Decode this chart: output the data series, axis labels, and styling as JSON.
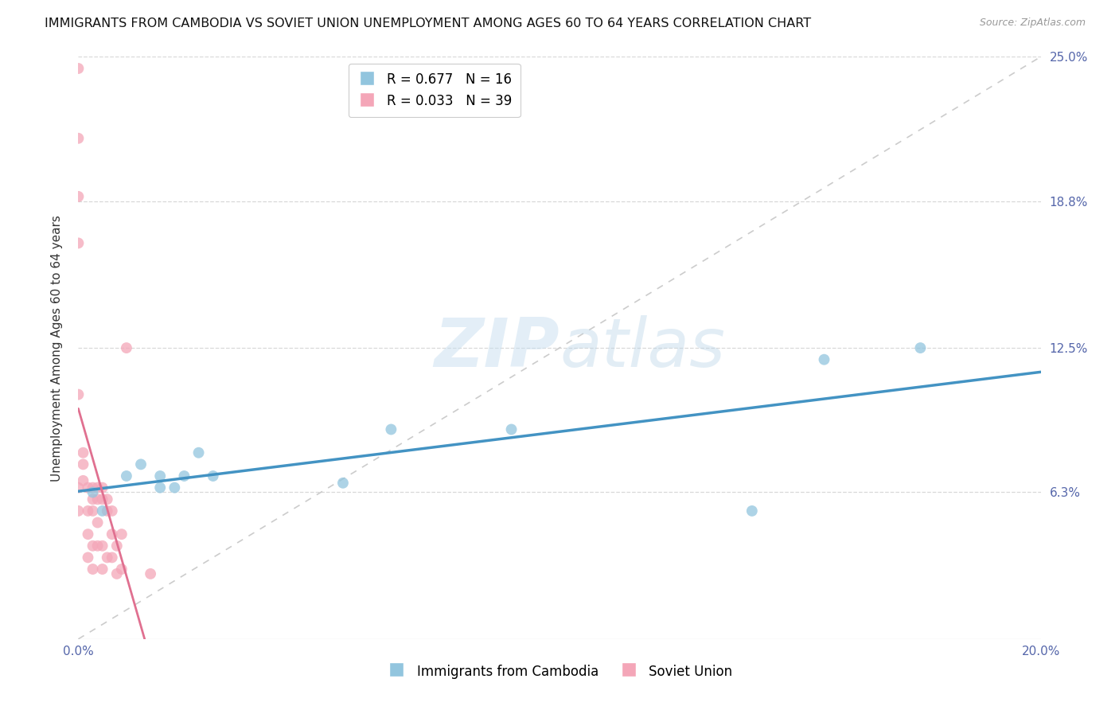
{
  "title": "IMMIGRANTS FROM CAMBODIA VS SOVIET UNION UNEMPLOYMENT AMONG AGES 60 TO 64 YEARS CORRELATION CHART",
  "source": "Source: ZipAtlas.com",
  "ylabel": "Unemployment Among Ages 60 to 64 years",
  "xlim": [
    0,
    0.2
  ],
  "ylim": [
    0,
    0.25
  ],
  "xticks": [
    0.0,
    0.05,
    0.1,
    0.15,
    0.2
  ],
  "yticks_right": [
    0.063,
    0.125,
    0.188,
    0.25
  ],
  "ytick_labels_right": [
    "6.3%",
    "12.5%",
    "18.8%",
    "25.0%"
  ],
  "cambodia_R": 0.677,
  "cambodia_N": 16,
  "soviet_R": 0.033,
  "soviet_N": 39,
  "cambodia_color": "#92c5de",
  "cambodia_line_color": "#4393c3",
  "soviet_color": "#f4a6b8",
  "soviet_line_color": "#e07090",
  "ref_line_color": "#cccccc",
  "background_color": "#ffffff",
  "cambodia_x": [
    0.003,
    0.005,
    0.01,
    0.013,
    0.017,
    0.017,
    0.02,
    0.022,
    0.025,
    0.028,
    0.055,
    0.065,
    0.09,
    0.14,
    0.155,
    0.175
  ],
  "cambodia_y": [
    0.063,
    0.055,
    0.07,
    0.075,
    0.065,
    0.07,
    0.065,
    0.07,
    0.08,
    0.07,
    0.067,
    0.09,
    0.09,
    0.055,
    0.12,
    0.125
  ],
  "soviet_x": [
    0.0,
    0.0,
    0.0,
    0.0,
    0.0,
    0.0,
    0.0,
    0.001,
    0.001,
    0.001,
    0.002,
    0.002,
    0.002,
    0.002,
    0.003,
    0.003,
    0.003,
    0.003,
    0.003,
    0.004,
    0.004,
    0.004,
    0.004,
    0.005,
    0.005,
    0.005,
    0.005,
    0.006,
    0.006,
    0.006,
    0.007,
    0.007,
    0.007,
    0.008,
    0.008,
    0.009,
    0.009,
    0.01,
    0.015
  ],
  "soviet_y": [
    0.245,
    0.215,
    0.19,
    0.17,
    0.105,
    0.065,
    0.055,
    0.08,
    0.075,
    0.068,
    0.065,
    0.055,
    0.045,
    0.035,
    0.065,
    0.06,
    0.055,
    0.04,
    0.03,
    0.065,
    0.06,
    0.05,
    0.04,
    0.065,
    0.06,
    0.04,
    0.03,
    0.06,
    0.055,
    0.035,
    0.055,
    0.045,
    0.035,
    0.04,
    0.028,
    0.045,
    0.03,
    0.125,
    0.028
  ],
  "title_fontsize": 11.5,
  "axis_label_fontsize": 11,
  "tick_fontsize": 11,
  "legend_fontsize": 12,
  "marker_size": 100
}
